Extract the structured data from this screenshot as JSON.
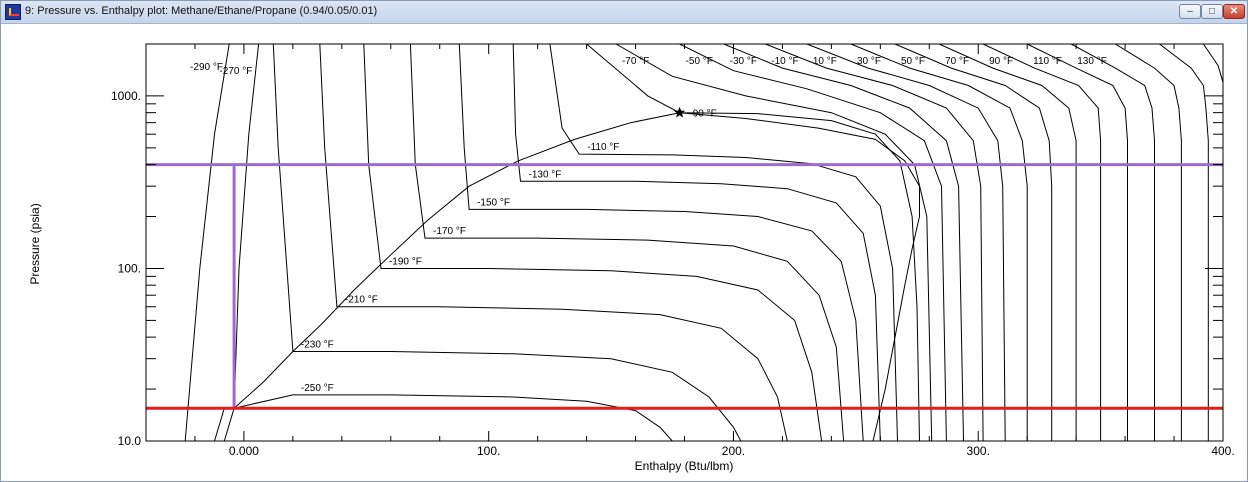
{
  "window": {
    "title": "9: Pressure vs. Enthalpy plot: Methane/Ethane/Propane (0.94/0.05/0.01)",
    "minimize_icon": "minimize-icon",
    "maximize_icon": "maximize-icon",
    "close_icon": "close-icon"
  },
  "chart_data": {
    "type": "line",
    "title": "",
    "xlabel": "Enthalpy (Btu/lbm)",
    "ylabel": "Pressure (psia)",
    "xlim": [
      -40,
      400
    ],
    "ylim": [
      10,
      2000
    ],
    "yscale": "log",
    "x_ticks": [
      0,
      100,
      200,
      300,
      400
    ],
    "x_tick_labels": [
      "0.000",
      "100.",
      "200.",
      "300.",
      "400."
    ],
    "y_ticks": [
      10,
      100,
      1000
    ],
    "y_tick_labels": [
      "10.0",
      "100.",
      "1000."
    ],
    "grid": false,
    "critical_point": {
      "x": 178,
      "y": 800
    },
    "saturation_dome": {
      "liquid": [
        [
          -4,
          15.5
        ],
        [
          8,
          22
        ],
        [
          20,
          33
        ],
        [
          32,
          48
        ],
        [
          45,
          75
        ],
        [
          60,
          120
        ],
        [
          75,
          190
        ],
        [
          92,
          300
        ],
        [
          112,
          420
        ],
        [
          135,
          560
        ],
        [
          158,
          700
        ],
        [
          178,
          800
        ]
      ],
      "vapor": [
        [
          178,
          800
        ],
        [
          205,
          740
        ],
        [
          235,
          650
        ],
        [
          258,
          560
        ],
        [
          270,
          420
        ],
        [
          276,
          300
        ],
        [
          276,
          200
        ],
        [
          273,
          130
        ],
        [
          270,
          80
        ],
        [
          266,
          40
        ],
        [
          262,
          20
        ],
        [
          257,
          10
        ]
      ]
    },
    "isotherms": [
      {
        "label": "-290 °F",
        "points": [
          [
            -24,
            10
          ],
          [
            -18,
            100
          ],
          [
            -12,
            600
          ],
          [
            -6,
            2000
          ]
        ]
      },
      {
        "label": "-270 °F",
        "points": [
          [
            -12,
            10
          ],
          [
            -8,
            15.5
          ],
          [
            -4,
            15.5
          ],
          [
            -2,
            100
          ],
          [
            2,
            600
          ],
          [
            6,
            2000
          ]
        ]
      },
      {
        "label": "-250 °F",
        "points": [
          [
            -8,
            10
          ],
          [
            -4,
            15.5
          ],
          [
            20,
            18.5
          ],
          [
            60,
            18.5
          ],
          [
            110,
            18
          ],
          [
            140,
            17
          ],
          [
            160,
            15
          ],
          [
            170,
            12
          ],
          [
            175,
            10
          ]
        ]
      },
      {
        "label": "-230 °F",
        "points": [
          [
            12,
            2000
          ],
          [
            14,
            500
          ],
          [
            20,
            33
          ],
          [
            60,
            33
          ],
          [
            110,
            32
          ],
          [
            150,
            30
          ],
          [
            175,
            25
          ],
          [
            190,
            18
          ],
          [
            200,
            12
          ],
          [
            203,
            10
          ]
        ]
      },
      {
        "label": "-210 °F",
        "points": [
          [
            31,
            2000
          ],
          [
            33,
            500
          ],
          [
            38,
            60
          ],
          [
            80,
            60
          ],
          [
            130,
            58
          ],
          [
            170,
            54
          ],
          [
            195,
            45
          ],
          [
            210,
            30
          ],
          [
            218,
            18
          ],
          [
            222,
            10
          ]
        ]
      },
      {
        "label": "-190 °F",
        "points": [
          [
            49,
            2000
          ],
          [
            51,
            400
          ],
          [
            56,
            100
          ],
          [
            100,
            100
          ],
          [
            150,
            97
          ],
          [
            185,
            90
          ],
          [
            210,
            75
          ],
          [
            225,
            50
          ],
          [
            232,
            25
          ],
          [
            236,
            10
          ]
        ]
      },
      {
        "label": "-170 °F",
        "points": [
          [
            68,
            2000
          ],
          [
            70,
            400
          ],
          [
            74,
            150
          ],
          [
            120,
            150
          ],
          [
            165,
            146
          ],
          [
            200,
            135
          ],
          [
            222,
            110
          ],
          [
            235,
            70
          ],
          [
            242,
            35
          ],
          [
            245,
            10
          ]
        ]
      },
      {
        "label": "-150 °F",
        "points": [
          [
            88,
            2000
          ],
          [
            90,
            500
          ],
          [
            92,
            220
          ],
          [
            140,
            220
          ],
          [
            180,
            214
          ],
          [
            210,
            200
          ],
          [
            232,
            165
          ],
          [
            244,
            110
          ],
          [
            250,
            50
          ],
          [
            253,
            10
          ]
        ]
      },
      {
        "label": "-130 °F",
        "points": [
          [
            110,
            2000
          ],
          [
            111,
            600
          ],
          [
            113,
            320
          ],
          [
            160,
            320
          ],
          [
            195,
            310
          ],
          [
            222,
            290
          ],
          [
            242,
            240
          ],
          [
            253,
            160
          ],
          [
            258,
            70
          ],
          [
            260,
            10
          ]
        ]
      },
      {
        "label": "-110 °F",
        "points": [
          [
            125,
            2000
          ],
          [
            130,
            650
          ],
          [
            137,
            460
          ],
          [
            175,
            455
          ],
          [
            205,
            440
          ],
          [
            232,
            405
          ],
          [
            250,
            340
          ],
          [
            260,
            230
          ],
          [
            265,
            100
          ],
          [
            267,
            10
          ]
        ]
      },
      {
        "label": "-90 °F",
        "points": [
          [
            140,
            2000
          ],
          [
            165,
            1000
          ],
          [
            178,
            800
          ],
          [
            210,
            790
          ],
          [
            240,
            720
          ],
          [
            258,
            600
          ],
          [
            268,
            420
          ],
          [
            273,
            200
          ],
          [
            275,
            60
          ],
          [
            276,
            10
          ]
        ]
      },
      {
        "label": "-70 °F",
        "points": [
          [
            152,
            2000
          ],
          [
            175,
            1300
          ],
          [
            205,
            1000
          ],
          [
            240,
            800
          ],
          [
            262,
            600
          ],
          [
            274,
            400
          ],
          [
            279,
            200
          ],
          [
            281,
            10
          ]
        ]
      },
      {
        "label": "-50 °F",
        "points": [
          [
            178,
            2000
          ],
          [
            200,
            1400
          ],
          [
            230,
            1100
          ],
          [
            260,
            800
          ],
          [
            278,
            550
          ],
          [
            285,
            300
          ],
          [
            287,
            10
          ]
        ]
      },
      {
        "label": "-30 °F",
        "points": [
          [
            196,
            2000
          ],
          [
            220,
            1450
          ],
          [
            248,
            1150
          ],
          [
            272,
            850
          ],
          [
            287,
            550
          ],
          [
            292,
            300
          ],
          [
            294,
            10
          ]
        ]
      },
      {
        "label": "-10 °F",
        "points": [
          [
            213,
            2000
          ],
          [
            238,
            1450
          ],
          [
            265,
            1150
          ],
          [
            287,
            850
          ],
          [
            298,
            550
          ],
          [
            301,
            300
          ],
          [
            302,
            10
          ]
        ]
      },
      {
        "label": "10 °F",
        "points": [
          [
            230,
            2000
          ],
          [
            255,
            1450
          ],
          [
            280,
            1150
          ],
          [
            300,
            850
          ],
          [
            308,
            550
          ],
          [
            310,
            300
          ],
          [
            311,
            10
          ]
        ]
      },
      {
        "label": "30 °F",
        "points": [
          [
            248,
            2000
          ],
          [
            272,
            1450
          ],
          [
            296,
            1150
          ],
          [
            313,
            850
          ],
          [
            318,
            550
          ],
          [
            320,
            300
          ],
          [
            320,
            10
          ]
        ]
      },
      {
        "label": "50 °F",
        "points": [
          [
            266,
            2000
          ],
          [
            289,
            1450
          ],
          [
            311,
            1150
          ],
          [
            325,
            850
          ],
          [
            329,
            550
          ],
          [
            330,
            300
          ],
          [
            330,
            10
          ]
        ]
      },
      {
        "label": "70 °F",
        "points": [
          [
            284,
            2000
          ],
          [
            306,
            1450
          ],
          [
            326,
            1150
          ],
          [
            337,
            850
          ],
          [
            340,
            550
          ],
          [
            340,
            300
          ],
          [
            340,
            10
          ]
        ]
      },
      {
        "label": "90 °F",
        "points": [
          [
            302,
            2000
          ],
          [
            323,
            1450
          ],
          [
            341,
            1150
          ],
          [
            349,
            850
          ],
          [
            350,
            550
          ],
          [
            350,
            300
          ],
          [
            350,
            10
          ]
        ]
      },
      {
        "label": "110 °F",
        "points": [
          [
            320,
            2000
          ],
          [
            340,
            1450
          ],
          [
            355,
            1150
          ],
          [
            360,
            850
          ],
          [
            361,
            550
          ],
          [
            361,
            300
          ],
          [
            361,
            10
          ]
        ]
      },
      {
        "label": "130 °F",
        "points": [
          [
            338,
            2000
          ],
          [
            356,
            1450
          ],
          [
            368,
            1150
          ],
          [
            371,
            850
          ],
          [
            372,
            550
          ],
          [
            372,
            300
          ],
          [
            372,
            10
          ]
        ]
      },
      {
        "label": "",
        "points": [
          [
            356,
            2000
          ],
          [
            372,
            1450
          ],
          [
            380,
            1150
          ],
          [
            382,
            850
          ],
          [
            383,
            550
          ],
          [
            383,
            300
          ],
          [
            383,
            10
          ]
        ]
      },
      {
        "label": "",
        "points": [
          [
            374,
            2000
          ],
          [
            387,
            1450
          ],
          [
            392,
            1150
          ],
          [
            393,
            850
          ],
          [
            394,
            550
          ],
          [
            394,
            300
          ],
          [
            394,
            10
          ]
        ]
      },
      {
        "label": "",
        "points": [
          [
            392,
            2000
          ],
          [
            398,
            1500
          ],
          [
            400,
            1200
          ]
        ]
      }
    ],
    "overlays": [
      {
        "name": "purple-high-pressure-line",
        "color": "#9b6bd1",
        "points": [
          [
            -40,
            400
          ],
          [
            400,
            400
          ]
        ]
      },
      {
        "name": "purple-vertical-line",
        "color": "#9b6bd1",
        "points": [
          [
            -4,
            400
          ],
          [
            -4,
            15.5
          ]
        ]
      },
      {
        "name": "red-low-pressure-line",
        "color": "#e81b1b",
        "points": [
          [
            -40,
            15.5
          ],
          [
            400,
            15.5
          ]
        ]
      }
    ]
  }
}
